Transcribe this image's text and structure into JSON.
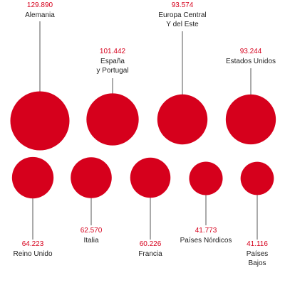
{
  "chart_data": {
    "type": "bubble",
    "title": "",
    "number_format": "es-ES",
    "bubble_color": "#d6001c",
    "series": [
      {
        "label_lines": [
          "Alemania"
        ],
        "value_text": "129.890",
        "value": 129890
      },
      {
        "label_lines": [
          "España",
          "y Portugal"
        ],
        "value_text": "101.442",
        "value": 101442
      },
      {
        "label_lines": [
          "Europa Central",
          "Y del Este"
        ],
        "value_text": "93.574",
        "value": 93574
      },
      {
        "label_lines": [
          "Estados Unidos"
        ],
        "value_text": "93.244",
        "value": 93244
      },
      {
        "label_lines": [
          "Reino Unido"
        ],
        "value_text": "64.223",
        "value": 64223
      },
      {
        "label_lines": [
          "Italia"
        ],
        "value_text": "62.570",
        "value": 62570
      },
      {
        "label_lines": [
          "Francia"
        ],
        "value_text": "60.226",
        "value": 60226
      },
      {
        "label_lines": [
          "Países Nórdicos"
        ],
        "value_text": "41.773",
        "value": 41773
      },
      {
        "label_lines": [
          "Países",
          "Bajos"
        ],
        "value_text": "41.116",
        "value": 41116
      }
    ]
  }
}
